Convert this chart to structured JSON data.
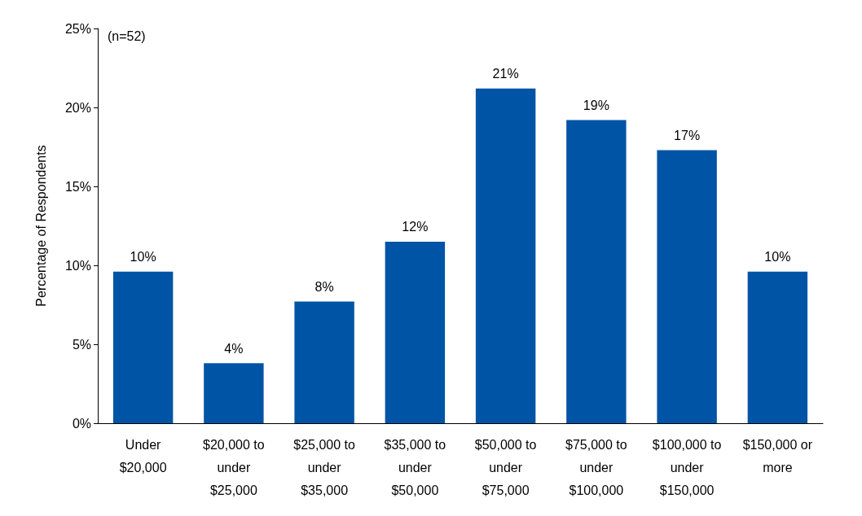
{
  "chart_data": {
    "type": "bar",
    "ylabel": "Percentage of Respondents",
    "annotations": [
      "(n=52)"
    ],
    "categories": [
      "Under $20,000",
      "$20,000 to under $25,000",
      "$25,000 to under $35,000",
      "$35,000 to under $50,000",
      "$50,000 to under $75,000",
      "$75,000 to under $100,000",
      "$100,000 to under $150,000",
      "$150,000 or more"
    ],
    "values": [
      9.6,
      3.8,
      7.7,
      11.5,
      21.2,
      19.2,
      17.3,
      9.6
    ],
    "value_labels": [
      "10%",
      "4%",
      "8%",
      "12%",
      "21%",
      "19%",
      "17%",
      "10%"
    ],
    "color": "#0054a6",
    "ylim": [
      0,
      25
    ],
    "yticks": [
      {
        "value": 0,
        "label": "0%"
      },
      {
        "value": 5,
        "label": "5%"
      },
      {
        "value": 10,
        "label": "10%"
      },
      {
        "value": 15,
        "label": "15%"
      },
      {
        "value": 20,
        "label": "20%"
      },
      {
        "value": 25,
        "label": "25%"
      }
    ],
    "grid": false
  }
}
